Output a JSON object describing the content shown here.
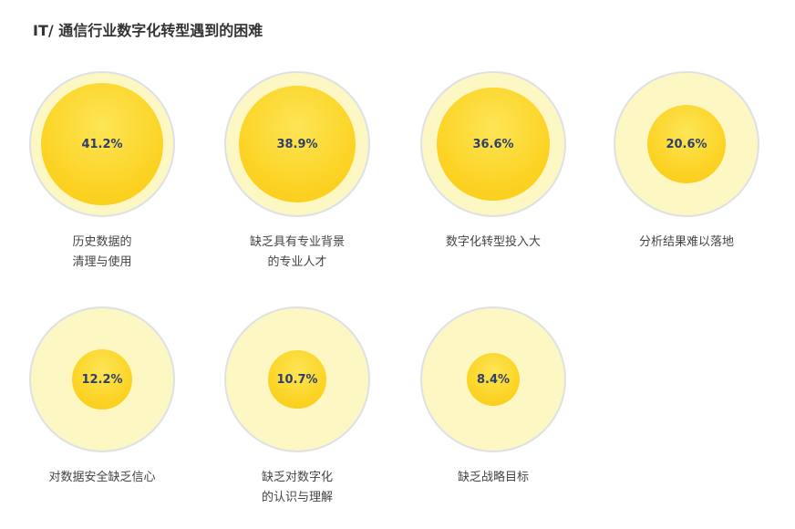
{
  "chart_title": "IT/ 通信行业数字化转型遇到的困难",
  "colors": {
    "bubble": "#fcd426",
    "ring_fill": "#fdf7c4",
    "ring_border": "#dde1e6",
    "value_text": "#2e3f6a"
  },
  "chart_data": {
    "type": "bubble",
    "title": "IT/ 通信行业数字化转型遇到的困难",
    "unit": "%",
    "items": [
      {
        "label": "历史数据的\n清理与使用",
        "value": 41.2,
        "display": "41.2%"
      },
      {
        "label": "缺乏具有专业背景\n的专业人才",
        "value": 38.9,
        "display": "38.9%"
      },
      {
        "label": "数字化转型投入大",
        "value": 36.6,
        "display": "36.6%"
      },
      {
        "label": "分析结果难以落地",
        "value": 20.6,
        "display": "20.6%"
      },
      {
        "label": "对数据安全缺乏信心",
        "value": 12.2,
        "display": "12.2%"
      },
      {
        "label": "缺乏对数字化\n的认识与理解",
        "value": 10.7,
        "display": "10.7%"
      },
      {
        "label": "缺乏战略目标",
        "value": 8.4,
        "display": "8.4%"
      }
    ]
  }
}
